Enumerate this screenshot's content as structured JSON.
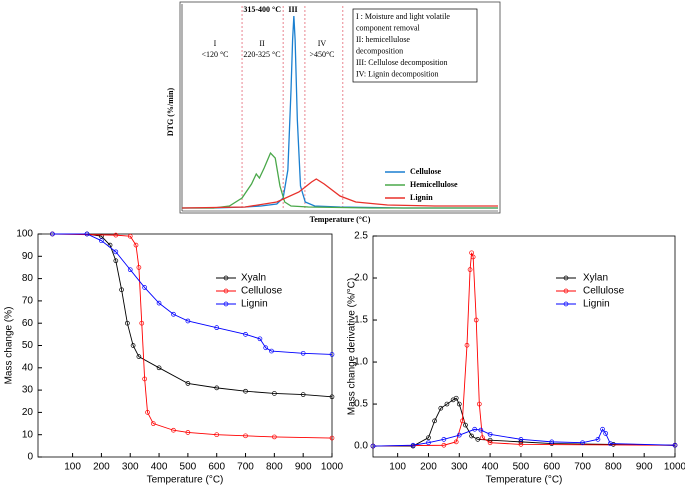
{
  "chart_data": [
    {
      "type": "line",
      "y_label": "DTG (%/min)",
      "x_label": "Temperature (°C)",
      "xlim": [
        0,
        1000
      ],
      "ylim": [
        0,
        100
      ],
      "dividers": [
        190,
        320,
        389,
        509
      ],
      "region_labels": [
        {
          "numeral": "I",
          "range": "<120 °C"
        },
        {
          "numeral": "II",
          "range": "220-325 °C"
        },
        {
          "numeral": "III",
          "range": "315-400 °C"
        },
        {
          "numeral": "IV",
          "range": ">450°C"
        }
      ],
      "notes": [
        "I : Moisture and light volatile",
        "component removal",
        "II: hemicellulose",
        "decomposition",
        "III: Cellulose decomposition",
        "IV: Lignin decomposition"
      ],
      "series": [
        {
          "name": "Cellulose",
          "color": "#1a7fd0",
          "x": [
            0,
            100,
            200,
            250,
            300,
            320,
            335,
            345,
            350,
            354,
            358,
            365,
            375,
            390,
            420,
            500,
            700,
            1000
          ],
          "values": [
            1,
            1,
            1.5,
            2,
            3,
            6,
            20,
            60,
            85,
            97,
            85,
            45,
            12,
            4,
            2,
            1.5,
            1,
            1
          ]
        },
        {
          "name": "Hemicellulose",
          "color": "#4aa84a",
          "x": [
            0,
            100,
            150,
            190,
            220,
            235,
            245,
            260,
            280,
            295,
            310,
            325,
            345,
            400,
            600,
            1000
          ],
          "values": [
            1,
            1,
            2,
            6,
            13,
            18,
            16,
            21,
            28.5,
            26,
            12,
            4,
            2,
            1.5,
            1,
            1
          ]
        },
        {
          "name": "Lignin",
          "color": "#e8302a",
          "x": [
            0,
            200,
            300,
            370,
            410,
            425,
            450,
            500,
            550,
            650,
            800,
            1000
          ],
          "values": [
            1,
            1.5,
            4,
            9,
            14,
            15.5,
            13,
            7,
            4,
            2.5,
            2,
            2
          ]
        }
      ]
    },
    {
      "type": "line",
      "y_label": "Mass change (%)",
      "x_label": "Temperature (°C)",
      "xlim": [
        -20,
        1000
      ],
      "ylim": [
        0,
        100
      ],
      "marker": "circle",
      "xticks": [
        100,
        200,
        300,
        400,
        500,
        600,
        700,
        800,
        900,
        1000
      ],
      "yticks": [
        0,
        10,
        20,
        30,
        40,
        50,
        60,
        70,
        80,
        90,
        100
      ],
      "series": [
        {
          "name": "Xyaln",
          "color": "#000000",
          "x": [
            30,
            150,
            200,
            230,
            250,
            270,
            290,
            310,
            330,
            400,
            500,
            600,
            700,
            800,
            900,
            1000
          ],
          "values": [
            100,
            100,
            99,
            95,
            88,
            75,
            60,
            50,
            45,
            40,
            33,
            31,
            29.5,
            28.5,
            28,
            27
          ]
        },
        {
          "name": "Cellulose",
          "color": "#ff0000",
          "x": [
            30,
            250,
            300,
            320,
            330,
            340,
            350,
            360,
            380,
            450,
            500,
            600,
            700,
            800,
            1000
          ],
          "values": [
            100,
            99.5,
            99,
            95,
            85,
            60,
            35,
            20,
            15,
            12,
            11,
            10,
            9.5,
            9,
            8.5
          ]
        },
        {
          "name": "Lignin",
          "color": "#0000ff",
          "x": [
            30,
            150,
            200,
            250,
            300,
            350,
            400,
            450,
            500,
            600,
            700,
            750,
            770,
            790,
            900,
            1000
          ],
          "values": [
            100,
            100,
            97,
            92,
            84,
            76,
            69,
            64,
            61,
            58,
            55,
            53,
            49,
            47.5,
            46.5,
            46
          ]
        }
      ]
    },
    {
      "type": "line",
      "y_label": "Mass change derivative (%/°C)",
      "x_label": "Temperature (°C)",
      "xlim": [
        20,
        1000
      ],
      "ylim": [
        -0.13,
        2.5
      ],
      "marker": "circle",
      "xticks": [
        100,
        200,
        300,
        400,
        500,
        600,
        700,
        800,
        900,
        1000
      ],
      "yticks": [
        {
          "value": 0,
          "label": "0.0"
        },
        0.5,
        {
          "value": 1,
          "label": "1.0"
        },
        1.5,
        {
          "value": 2,
          "label": "2.0"
        },
        2.5
      ],
      "series": [
        {
          "name": "Xylan",
          "color": "#000000",
          "x": [
            20,
            150,
            200,
            220,
            240,
            260,
            280,
            290,
            300,
            320,
            340,
            360,
            400,
            500,
            600,
            800,
            1000
          ],
          "values": [
            0,
            0,
            0.1,
            0.3,
            0.45,
            0.5,
            0.55,
            0.57,
            0.5,
            0.25,
            0.12,
            0.08,
            0.07,
            0.05,
            0.03,
            0.02,
            0.01
          ]
        },
        {
          "name": "Cellulose",
          "color": "#ff0000",
          "x": [
            20,
            250,
            290,
            310,
            325,
            335,
            340,
            345,
            355,
            365,
            375,
            400,
            500,
            1000
          ],
          "values": [
            0,
            0.01,
            0.05,
            0.3,
            1.2,
            2.1,
            2.3,
            2.25,
            1.5,
            0.5,
            0.1,
            0.04,
            0.02,
            0.01
          ]
        },
        {
          "name": "Lignin",
          "color": "#0000ff",
          "x": [
            20,
            150,
            200,
            250,
            300,
            350,
            370,
            400,
            500,
            600,
            700,
            750,
            765,
            775,
            790,
            1000
          ],
          "values": [
            0,
            0.01,
            0.04,
            0.08,
            0.13,
            0.2,
            0.19,
            0.14,
            0.08,
            0.05,
            0.04,
            0.08,
            0.2,
            0.15,
            0.03,
            0.01
          ]
        }
      ]
    }
  ]
}
